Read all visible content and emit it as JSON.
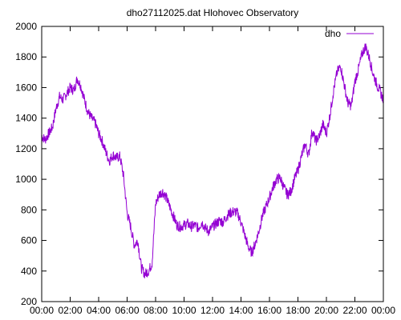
{
  "chart_data": {
    "type": "line",
    "title": "dho27112025.dat Hlohovec Observatory",
    "xlabel": "",
    "ylabel": "",
    "xlim": [
      0,
      24
    ],
    "ylim": [
      200,
      2000
    ],
    "xticks": [
      0,
      2,
      4,
      6,
      8,
      10,
      12,
      14,
      16,
      18,
      20,
      22,
      24
    ],
    "xtick_labels": [
      "00:00",
      "02:00",
      "04:00",
      "06:00",
      "08:00",
      "10:00",
      "12:00",
      "14:00",
      "16:00",
      "18:00",
      "20:00",
      "22:00",
      "00:00"
    ],
    "yticks": [
      200,
      400,
      600,
      800,
      1000,
      1200,
      1400,
      1600,
      1800,
      2000
    ],
    "ytick_labels": [
      "200",
      "400",
      "600",
      "800",
      "1000",
      "1200",
      "1400",
      "1600",
      "1800",
      "2000"
    ],
    "grid": false,
    "legend": "top-right",
    "series": [
      {
        "name": "dho",
        "color": "#9400d3",
        "x": [
          0.0,
          0.25,
          0.5,
          0.75,
          1.0,
          1.25,
          1.5,
          1.75,
          2.0,
          2.25,
          2.5,
          2.75,
          3.0,
          3.25,
          3.5,
          3.75,
          4.0,
          4.25,
          4.5,
          4.75,
          5.0,
          5.25,
          5.5,
          5.75,
          6.0,
          6.25,
          6.5,
          6.75,
          7.0,
          7.25,
          7.5,
          7.75,
          8.0,
          8.25,
          8.5,
          8.75,
          9.0,
          9.25,
          9.5,
          9.75,
          10.0,
          10.25,
          10.5,
          10.75,
          11.0,
          11.25,
          11.5,
          11.75,
          12.0,
          12.25,
          12.5,
          12.75,
          13.0,
          13.25,
          13.5,
          13.75,
          14.0,
          14.25,
          14.5,
          14.75,
          15.0,
          15.25,
          15.5,
          15.75,
          16.0,
          16.25,
          16.5,
          16.75,
          17.0,
          17.25,
          17.5,
          17.75,
          18.0,
          18.25,
          18.5,
          18.75,
          19.0,
          19.25,
          19.5,
          19.75,
          20.0,
          20.25,
          20.5,
          20.75,
          21.0,
          21.25,
          21.5,
          21.75,
          22.0,
          22.25,
          22.5,
          22.75,
          23.0,
          23.25,
          23.5,
          23.75,
          24.0
        ],
        "y": [
          1280,
          1260,
          1300,
          1340,
          1460,
          1540,
          1520,
          1560,
          1600,
          1580,
          1660,
          1610,
          1520,
          1440,
          1400,
          1370,
          1300,
          1250,
          1180,
          1120,
          1160,
          1140,
          1150,
          1020,
          780,
          690,
          570,
          600,
          420,
          380,
          400,
          450,
          840,
          900,
          920,
          880,
          820,
          760,
          700,
          690,
          700,
          710,
          690,
          700,
          680,
          720,
          680,
          660,
          690,
          710,
          730,
          720,
          760,
          780,
          790,
          780,
          720,
          640,
          560,
          520,
          580,
          660,
          760,
          820,
          880,
          950,
          1000,
          1010,
          950,
          900,
          920,
          1000,
          1060,
          1150,
          1230,
          1160,
          1320,
          1250,
          1280,
          1360,
          1300,
          1420,
          1580,
          1700,
          1740,
          1620,
          1500,
          1480,
          1640,
          1720,
          1820,
          1870,
          1800,
          1700,
          1630,
          1580,
          1520
        ]
      }
    ]
  }
}
